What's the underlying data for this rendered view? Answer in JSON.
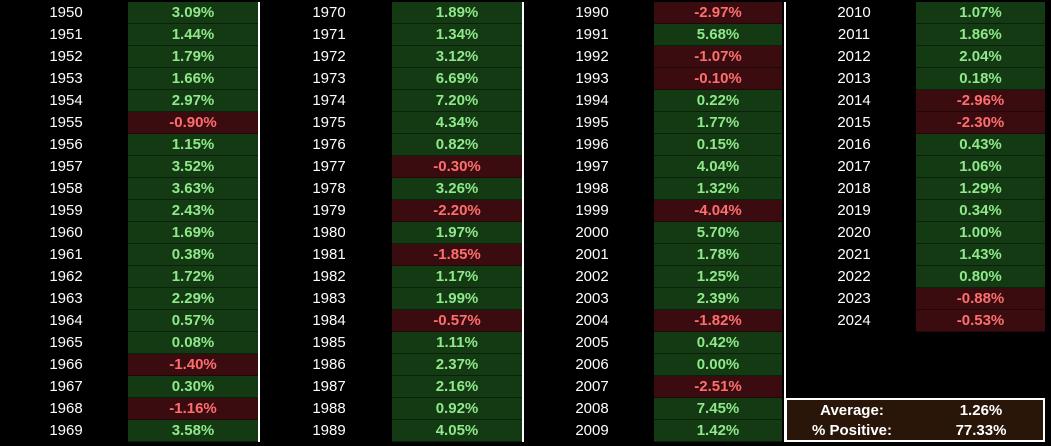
{
  "colors": {
    "positive_bg": "#143a14",
    "positive_text": "#8fe88a",
    "negative_bg": "#3a0c10",
    "negative_text": "#ff6e6e",
    "summary_bg": "#2a1608",
    "border": "#ffffff"
  },
  "columns": [
    {
      "rows": [
        {
          "year": "1950",
          "value": "3.09%"
        },
        {
          "year": "1951",
          "value": "1.44%"
        },
        {
          "year": "1952",
          "value": "1.79%"
        },
        {
          "year": "1953",
          "value": "1.66%"
        },
        {
          "year": "1954",
          "value": "2.97%"
        },
        {
          "year": "1955",
          "value": "-0.90%"
        },
        {
          "year": "1956",
          "value": "1.15%"
        },
        {
          "year": "1957",
          "value": "3.52%"
        },
        {
          "year": "1958",
          "value": "3.63%"
        },
        {
          "year": "1959",
          "value": "2.43%"
        },
        {
          "year": "1960",
          "value": "1.69%"
        },
        {
          "year": "1961",
          "value": "0.38%"
        },
        {
          "year": "1962",
          "value": "1.72%"
        },
        {
          "year": "1963",
          "value": "2.29%"
        },
        {
          "year": "1964",
          "value": "0.57%"
        },
        {
          "year": "1965",
          "value": "0.08%"
        },
        {
          "year": "1966",
          "value": "-1.40%"
        },
        {
          "year": "1967",
          "value": "0.30%"
        },
        {
          "year": "1968",
          "value": "-1.16%"
        },
        {
          "year": "1969",
          "value": "3.58%"
        }
      ]
    },
    {
      "rows": [
        {
          "year": "1970",
          "value": "1.89%"
        },
        {
          "year": "1971",
          "value": "1.34%"
        },
        {
          "year": "1972",
          "value": "3.12%"
        },
        {
          "year": "1973",
          "value": "6.69%"
        },
        {
          "year": "1974",
          "value": "7.20%"
        },
        {
          "year": "1975",
          "value": "4.34%"
        },
        {
          "year": "1976",
          "value": "0.82%"
        },
        {
          "year": "1977",
          "value": "-0.30%"
        },
        {
          "year": "1978",
          "value": "3.26%"
        },
        {
          "year": "1979",
          "value": "-2.20%"
        },
        {
          "year": "1980",
          "value": "1.97%"
        },
        {
          "year": "1981",
          "value": "-1.85%"
        },
        {
          "year": "1982",
          "value": "1.17%"
        },
        {
          "year": "1983",
          "value": "1.99%"
        },
        {
          "year": "1984",
          "value": "-0.57%"
        },
        {
          "year": "1985",
          "value": "1.11%"
        },
        {
          "year": "1986",
          "value": "2.37%"
        },
        {
          "year": "1987",
          "value": "2.16%"
        },
        {
          "year": "1988",
          "value": "0.92%"
        },
        {
          "year": "1989",
          "value": "4.05%"
        }
      ]
    },
    {
      "rows": [
        {
          "year": "1990",
          "value": "-2.97%"
        },
        {
          "year": "1991",
          "value": "5.68%"
        },
        {
          "year": "1992",
          "value": "-1.07%"
        },
        {
          "year": "1993",
          "value": "-0.10%"
        },
        {
          "year": "1994",
          "value": "0.22%"
        },
        {
          "year": "1995",
          "value": "1.77%"
        },
        {
          "year": "1996",
          "value": "0.15%"
        },
        {
          "year": "1997",
          "value": "4.04%"
        },
        {
          "year": "1998",
          "value": "1.32%"
        },
        {
          "year": "1999",
          "value": "-4.04%"
        },
        {
          "year": "2000",
          "value": "5.70%"
        },
        {
          "year": "2001",
          "value": "1.78%"
        },
        {
          "year": "2002",
          "value": "1.25%"
        },
        {
          "year": "2003",
          "value": "2.39%"
        },
        {
          "year": "2004",
          "value": "-1.82%"
        },
        {
          "year": "2005",
          "value": "0.42%"
        },
        {
          "year": "2006",
          "value": "0.00%"
        },
        {
          "year": "2007",
          "value": "-2.51%"
        },
        {
          "year": "2008",
          "value": "7.45%"
        },
        {
          "year": "2009",
          "value": "1.42%"
        }
      ]
    },
    {
      "rows": [
        {
          "year": "2010",
          "value": "1.07%"
        },
        {
          "year": "2011",
          "value": "1.86%"
        },
        {
          "year": "2012",
          "value": "2.04%"
        },
        {
          "year": "2013",
          "value": "0.18%"
        },
        {
          "year": "2014",
          "value": "-2.96%"
        },
        {
          "year": "2015",
          "value": "-2.30%"
        },
        {
          "year": "2016",
          "value": "0.43%"
        },
        {
          "year": "2017",
          "value": "1.06%"
        },
        {
          "year": "2018",
          "value": "1.29%"
        },
        {
          "year": "2019",
          "value": "0.34%"
        },
        {
          "year": "2020",
          "value": "1.00%"
        },
        {
          "year": "2021",
          "value": "1.43%"
        },
        {
          "year": "2022",
          "value": "0.80%"
        },
        {
          "year": "2023",
          "value": "-0.88%"
        },
        {
          "year": "2024",
          "value": "-0.53%"
        }
      ]
    }
  ],
  "summary": {
    "average_label": "Average:",
    "average_value": "1.26%",
    "positive_label": "% Positive:",
    "positive_value": "77.33%"
  }
}
